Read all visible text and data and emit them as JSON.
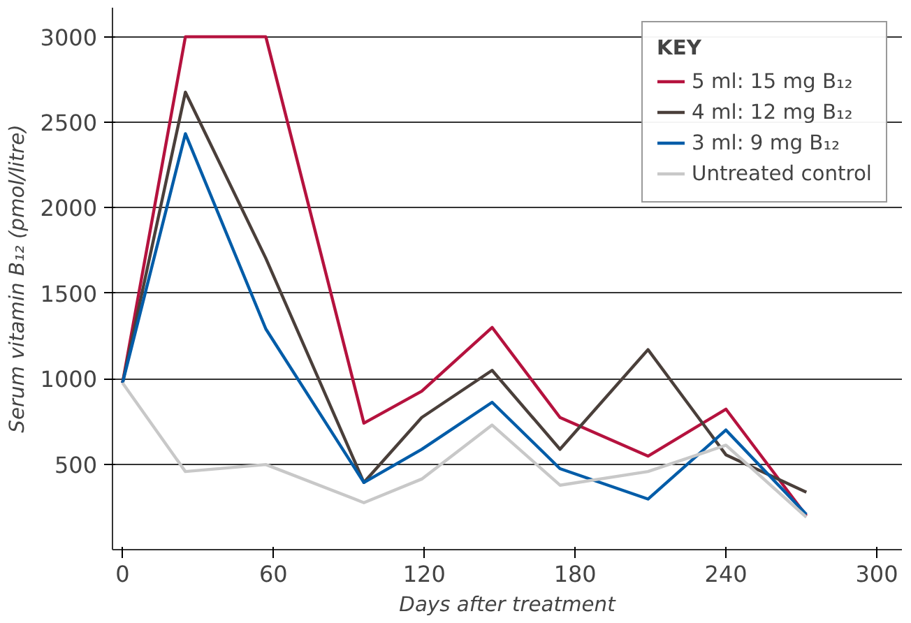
{
  "chart_data": {
    "type": "line",
    "xlabel": "Days after treatment",
    "ylabel": "Serum vitamin B₁₂ (pmol/litre)",
    "legend_title": "KEY",
    "x": [
      0,
      25,
      57,
      96,
      119,
      147,
      174,
      209,
      240,
      272
    ],
    "series": [
      {
        "name": "5 ml: 15 mg B₁₂",
        "color": "#b5123e",
        "values": [
          975,
          3000,
          3000,
          740,
          927,
          1300,
          773,
          547,
          822,
          198
        ]
      },
      {
        "name": "4 ml: 12 mg B₁₂",
        "color": "#4a3f3a",
        "values": [
          975,
          2676,
          1704,
          393,
          773,
          1049,
          587,
          1170,
          555,
          336
        ]
      },
      {
        "name": "3 ml: 9 mg B₁₂",
        "color": "#005ca8",
        "values": [
          975,
          2433,
          1291,
          393,
          587,
          862,
          474,
          296,
          700,
          206
        ]
      },
      {
        "name": "Untreated control",
        "color": "#c8c8c8",
        "values": [
          975,
          457,
          498,
          275,
          413,
          729,
          377,
          457,
          611,
          190
        ]
      }
    ],
    "xlim": [
      -4,
      310
    ],
    "ylim": [
      0,
      3170
    ],
    "xticks": [
      0,
      60,
      120,
      180,
      240,
      300
    ],
    "yticks": [
      500,
      1000,
      1500,
      2000,
      2500,
      3000
    ],
    "grid": "y",
    "legend": "top right",
    "marker": "none",
    "line_style": "solid"
  }
}
